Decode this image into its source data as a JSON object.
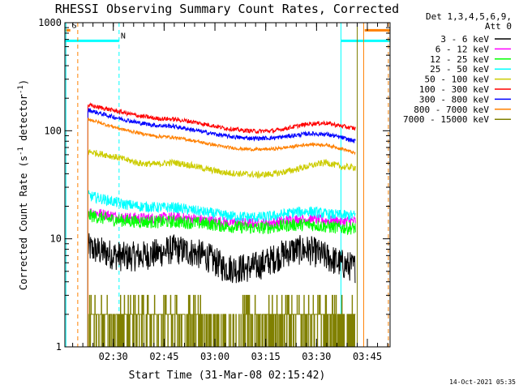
{
  "chart_data": {
    "type": "line",
    "title": "RHESSI Observing Summary Count Rates, Corrected",
    "xlabel": "Start Time (31-Mar-08 02:15:42)",
    "ylabel": "Corrected Count Rate (s⁻¹ detector⁻¹)",
    "y_scale": "log",
    "ylim": [
      1,
      1000
    ],
    "y_ticks": [
      1,
      10,
      100,
      1000
    ],
    "y_tick_labels": [
      "1",
      "10",
      "100",
      "1000"
    ],
    "x_unit": "minutes since 02:15:42",
    "xlim": [
      0,
      96
    ],
    "x_ticks": [
      14.3,
      29.3,
      44.3,
      59.3,
      74.3,
      89.3
    ],
    "x_tick_labels": [
      "02:30",
      "02:45",
      "03:00",
      "03:15",
      "03:30",
      "03:45"
    ],
    "x_minor_ticks_per_major": 5,
    "grid": false,
    "legend_placement": "right",
    "legend_header": [
      "Det 1,3,4,5,6,9,",
      "Att 0"
    ],
    "data_start_min": 6.8,
    "data_end_min": 85.8,
    "series": [
      {
        "name": "3 - 6 keV",
        "color": "#000000",
        "x": [
          7,
          12,
          17,
          22,
          27,
          32,
          37,
          42,
          47,
          52,
          57,
          62,
          67,
          72,
          77,
          82,
          85.5
        ],
        "values": [
          8.2,
          7.4,
          6.8,
          6.9,
          7.3,
          8.0,
          7.6,
          6.8,
          5.4,
          5.3,
          5.6,
          6.6,
          7.8,
          7.9,
          6.8,
          5.8,
          5.4
        ],
        "noise": 0.14
      },
      {
        "name": "6 - 12 keV",
        "color": "#ff00ff",
        "x": [
          7,
          12,
          17,
          22,
          27,
          32,
          37,
          42,
          47,
          52,
          57,
          62,
          67,
          72,
          77,
          82,
          85.5
        ],
        "values": [
          17.8,
          16.8,
          15.8,
          15.6,
          15.5,
          15.8,
          15.4,
          14.8,
          14.3,
          14.0,
          13.9,
          14.2,
          15.0,
          15.3,
          14.8,
          14.5,
          14.6
        ],
        "noise": 0.05
      },
      {
        "name": "12 - 25 keV",
        "color": "#00ff00",
        "x": [
          7,
          12,
          17,
          22,
          27,
          32,
          37,
          42,
          47,
          52,
          57,
          62,
          67,
          72,
          77,
          82,
          85.5
        ],
        "values": [
          16.5,
          15.3,
          14.8,
          14.4,
          14.3,
          14.4,
          14.1,
          13.8,
          13.1,
          12.8,
          12.5,
          12.9,
          13.4,
          13.6,
          13.0,
          12.6,
          12.6
        ],
        "noise": 0.06
      },
      {
        "name": "25 - 50 keV",
        "color": "#00ffff",
        "x": [
          7,
          12,
          17,
          22,
          27,
          32,
          37,
          42,
          47,
          52,
          57,
          62,
          67,
          72,
          77,
          82,
          85.5
        ],
        "values": [
          25,
          23,
          21,
          20,
          19.5,
          19.5,
          18.5,
          17.5,
          16.5,
          16,
          15.8,
          16.3,
          17.5,
          18,
          17,
          16.5,
          16.5
        ],
        "noise": 0.05
      },
      {
        "name": "50 - 100 keV",
        "color": "#cccc00",
        "x": [
          7,
          12,
          17,
          22,
          27,
          32,
          37,
          42,
          47,
          52,
          57,
          62,
          67,
          72,
          77,
          82,
          85.5
        ],
        "values": [
          64,
          60,
          55,
          50,
          49,
          51,
          48,
          44,
          41,
          40,
          39,
          40,
          43,
          47,
          51,
          46,
          46
        ],
        "noise": 0.03
      },
      {
        "name": "100 - 300 keV",
        "color": "#ff0000",
        "x": [
          7,
          12,
          17,
          22,
          27,
          32,
          37,
          42,
          47,
          52,
          57,
          62,
          67,
          72,
          77,
          82,
          85.5
        ],
        "values": [
          172,
          160,
          148,
          137,
          130,
          128,
          122,
          114,
          106,
          101,
          99,
          100,
          108,
          116,
          118,
          110,
          105
        ],
        "noise": 0.02
      },
      {
        "name": "300 - 800 keV",
        "color": "#0000ff",
        "x": [
          7,
          12,
          17,
          22,
          27,
          32,
          37,
          42,
          47,
          52,
          57,
          62,
          67,
          72,
          77,
          82,
          85.5
        ],
        "values": [
          155,
          140,
          128,
          118,
          112,
          110,
          103,
          96,
          90,
          86,
          85,
          86,
          90,
          94,
          93,
          86,
          80
        ],
        "noise": 0.02
      },
      {
        "name": "800 - 7000 keV",
        "color": "#ff8000",
        "x": [
          7,
          12,
          17,
          22,
          27,
          32,
          37,
          42,
          47,
          52,
          57,
          62,
          67,
          72,
          77,
          82,
          85.5
        ],
        "values": [
          128,
          114,
          103,
          95,
          89,
          87,
          82,
          76,
          71,
          68,
          67,
          68,
          71,
          75,
          74,
          68,
          62
        ],
        "noise": 0.015
      },
      {
        "name": "7000 - 15000 keV",
        "color": "#808000",
        "x": [
          7,
          12,
          17,
          22,
          27,
          32,
          37,
          42,
          47,
          52,
          57,
          62,
          67,
          72,
          77,
          82,
          85.5
        ],
        "values": [
          1.6,
          1.7,
          1.9,
          2.1,
          2.3,
          2.2,
          1.7,
          1.4,
          1.3,
          1.5,
          1.6,
          1.9,
          2.3,
          2.4,
          2.2,
          2.0,
          1.8
        ],
        "noise": 0,
        "discrete": true
      }
    ],
    "annotations": [
      {
        "type": "saa-bar",
        "label": "S",
        "color": "#ff8000",
        "level": 850,
        "x_ranges": [
          [
            0,
            1.6
          ],
          [
            88.5,
            96
          ]
        ]
      },
      {
        "type": "night-bar",
        "label": "N",
        "color": "#00ffff",
        "level": 680,
        "x_ranges": [
          [
            0,
            16.0
          ],
          [
            81.5,
            96
          ]
        ]
      },
      {
        "type": "vline",
        "style": "dashed",
        "color": "#ff8000",
        "x": 3.8
      },
      {
        "type": "vline",
        "style": "dashed",
        "color": "#00ffff",
        "x": 16.0
      },
      {
        "type": "vline",
        "style": "solid",
        "color": "#00ffff",
        "x": 0.3
      },
      {
        "type": "vline",
        "style": "solid",
        "color": "#00ffff",
        "x": 81.5
      },
      {
        "type": "vline",
        "style": "solid",
        "color": "#808000",
        "x": 86.3
      },
      {
        "type": "vline",
        "style": "solid",
        "color": "#ff8000",
        "x": 88.2
      },
      {
        "type": "vline",
        "style": "dashed",
        "color": "#ff8000",
        "x": 95.5
      }
    ]
  },
  "footer": {
    "generated_date": "14-Oct-2021 05:35"
  }
}
